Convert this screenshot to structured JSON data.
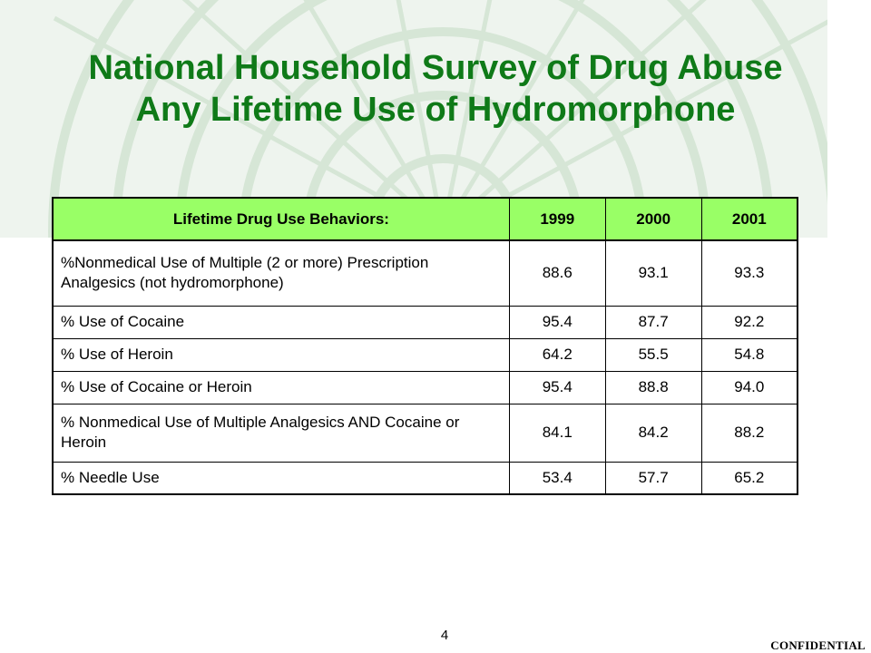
{
  "slide": {
    "title_line1": "National Household Survey of Drug Abuse",
    "title_line2": "Any Lifetime Use of Hydromorphone",
    "page_number": "4",
    "footer_label": "CONFIDENTIAL",
    "colors": {
      "title": "#0f7a18",
      "header_fill": "#99ff66",
      "pattern": "#d6e6d6"
    }
  },
  "table": {
    "headers": [
      "Lifetime Drug Use Behaviors:",
      "1999",
      "2000",
      "2001"
    ],
    "rows": [
      {
        "label": "%Nonmedical Use of Multiple (2 or more) Prescription Analgesics (not hydromorphone)",
        "values": [
          "88.6",
          "93.1",
          "93.3"
        ]
      },
      {
        "label": "% Use of Cocaine",
        "values": [
          "95.4",
          "87.7",
          "92.2"
        ]
      },
      {
        "label": "% Use of Heroin",
        "values": [
          "64.2",
          "55.5",
          "54.8"
        ]
      },
      {
        "label": "% Use of Cocaine or Heroin",
        "values": [
          "95.4",
          "88.8",
          "94.0"
        ]
      },
      {
        "label": "% Nonmedical Use of Multiple Analgesics AND Cocaine or Heroin",
        "values": [
          "84.1",
          "84.2",
          "88.2"
        ]
      },
      {
        "label": "% Needle Use",
        "values": [
          "53.4",
          "57.7",
          "65.2"
        ]
      }
    ]
  }
}
